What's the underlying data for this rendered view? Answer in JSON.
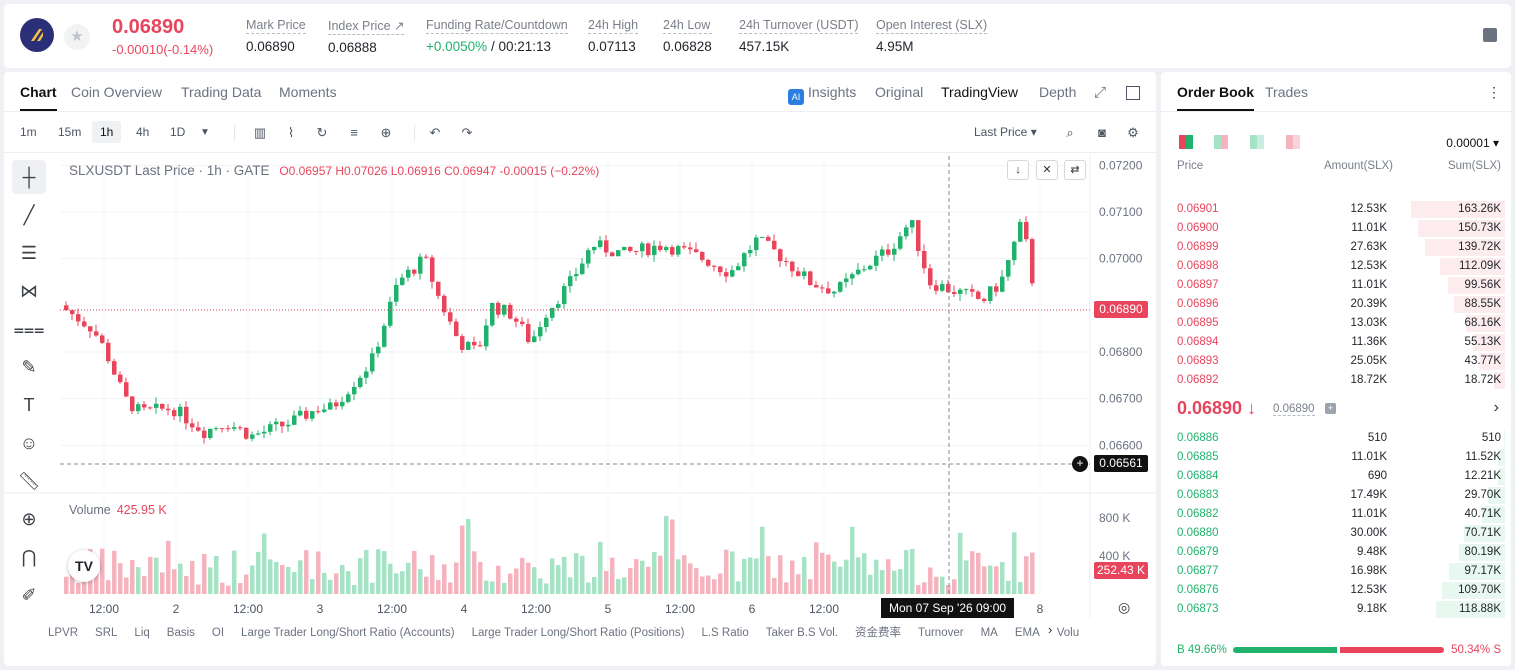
{
  "header": {
    "last_price": "0.06890",
    "change": "-0.00010(-0.14%)",
    "stats": [
      {
        "label": "Mark Price",
        "value": "0.06890"
      },
      {
        "label": "Index Price ↗",
        "value": "0.06888"
      },
      {
        "label": "Funding Rate/Countdown",
        "value_green": "+0.0050%",
        "value": " / 00:21:13"
      },
      {
        "label": "24h High",
        "value": "0.07113"
      },
      {
        "label": "24h Low",
        "value": "0.06828"
      },
      {
        "label": "24h Turnover (USDT)",
        "value": "457.15K"
      },
      {
        "label": "Open Interest (SLX)",
        "value": "4.95M"
      }
    ]
  },
  "chart_tabs": [
    "Chart",
    "Coin Overview",
    "Trading Data",
    "Moments"
  ],
  "view_tabs": {
    "insights": "Insights",
    "original": "Original",
    "tradingview": "TradingView",
    "depth": "Depth"
  },
  "timeframes": [
    "1m",
    "15m",
    "1h",
    "4h",
    "1D"
  ],
  "price_type": "Last Price ▾",
  "legend": {
    "symbol": "SLXUSDT Last Price · 1h · GATE",
    "ohlc": "O0.06957  H0.07026  L0.06916  C0.06947  -0.00015 (−0.22%)"
  },
  "volume": {
    "label": "Volume",
    "value": "425.95 K"
  },
  "axis": {
    "price_ticks": [
      "0.07200",
      "0.07100",
      "0.07000",
      "0.06900",
      "0.06800",
      "0.06700",
      "0.06600"
    ],
    "volume_ticks": [
      "800 K",
      "400 K"
    ],
    "time_ticks": [
      "12:00",
      "2",
      "12:00",
      "3",
      "12:00",
      "4",
      "12:00",
      "5",
      "12:00",
      "6",
      "12:00",
      "8"
    ],
    "last_price_tag": "0.06890",
    "cursor_price_tag": "0.06561",
    "volume_tag": "252.43 K",
    "crosshair_time": "Mon 07 Sep '26   09:00"
  },
  "indicators": [
    "LPVR",
    "SRL",
    "Liq",
    "Basis",
    "OI",
    "Large Trader Long/Short Ratio (Accounts)",
    "Large Trader Long/Short Ratio (Positions)",
    "L.S Ratio",
    "Taker B.S Vol.",
    "资金费率",
    "Turnover",
    "MA",
    "EMA",
    "Volu"
  ],
  "orderbook": {
    "tabs": [
      "Order Book",
      "Trades"
    ],
    "precision": "0.00001 ▾",
    "headers": {
      "price": "Price",
      "amount": "Amount(SLX)",
      "sum": "Sum(SLX)"
    },
    "asks": [
      {
        "p": "0.06901",
        "a": "12.53K",
        "s": "163.26K",
        "f": 0.94
      },
      {
        "p": "0.06900",
        "a": "11.01K",
        "s": "150.73K",
        "f": 0.87
      },
      {
        "p": "0.06899",
        "a": "27.63K",
        "s": "139.72K",
        "f": 0.8
      },
      {
        "p": "0.06898",
        "a": "12.53K",
        "s": "112.09K",
        "f": 0.65
      },
      {
        "p": "0.06897",
        "a": "11.01K",
        "s": "99.56K",
        "f": 0.57
      },
      {
        "p": "0.06896",
        "a": "20.39K",
        "s": "88.55K",
        "f": 0.51
      },
      {
        "p": "0.06895",
        "a": "13.03K",
        "s": "68.16K",
        "f": 0.39
      },
      {
        "p": "0.06894",
        "a": "11.36K",
        "s": "55.13K",
        "f": 0.32
      },
      {
        "p": "0.06893",
        "a": "25.05K",
        "s": "43.77K",
        "f": 0.25
      },
      {
        "p": "0.06892",
        "a": "18.72K",
        "s": "18.72K",
        "f": 0.11
      }
    ],
    "mid_price": "0.06890 ↓",
    "mid_mark": "0.06890",
    "bids": [
      {
        "p": "0.06886",
        "a": "510",
        "s": "510",
        "f": 0.01
      },
      {
        "p": "0.06885",
        "a": "11.01K",
        "s": "11.52K",
        "f": 0.07
      },
      {
        "p": "0.06884",
        "a": "690",
        "s": "12.21K",
        "f": 0.07
      },
      {
        "p": "0.06883",
        "a": "17.49K",
        "s": "29.70K",
        "f": 0.17
      },
      {
        "p": "0.06882",
        "a": "11.01K",
        "s": "40.71K",
        "f": 0.23
      },
      {
        "p": "0.06880",
        "a": "30.00K",
        "s": "70.71K",
        "f": 0.41
      },
      {
        "p": "0.06879",
        "a": "9.48K",
        "s": "80.19K",
        "f": 0.46
      },
      {
        "p": "0.06877",
        "a": "16.98K",
        "s": "97.17K",
        "f": 0.56
      },
      {
        "p": "0.06876",
        "a": "12.53K",
        "s": "109.70K",
        "f": 0.63
      },
      {
        "p": "0.06873",
        "a": "9.18K",
        "s": "118.88K",
        "f": 0.69
      }
    ],
    "buy_ratio": "B 49.66%",
    "sell_ratio": "50.34% S"
  },
  "colors": {
    "up": "#20b26c",
    "down": "#e8455d",
    "up_light": "#a6e3c5",
    "down_light": "#f5b3be"
  }
}
